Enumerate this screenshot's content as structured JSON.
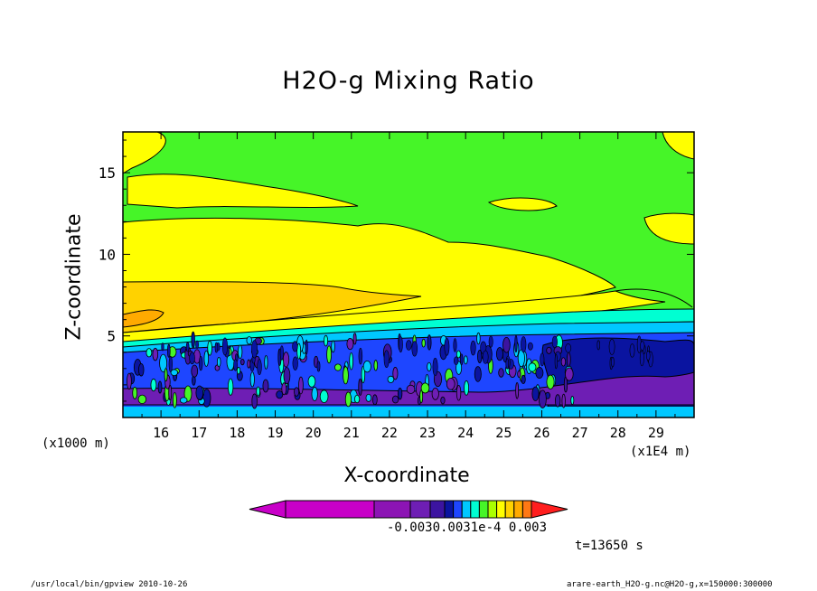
{
  "chart_data": {
    "type": "heatmap",
    "title": "H2O-g Mixing Ratio",
    "xlabel": "X-coordinate",
    "ylabel": "Z-coordinate",
    "x_scale_note": "(x1E4 m)",
    "y_scale_note": "(x1000 m)",
    "x_ticks": [
      16,
      17,
      18,
      19,
      20,
      21,
      22,
      23,
      24,
      25,
      26,
      27,
      28,
      29
    ],
    "y_ticks": [
      5,
      10,
      15
    ],
    "xlim": [
      15.0,
      30.0
    ],
    "ylim": [
      0,
      17.5
    ],
    "colorbar": {
      "colors": [
        "#c800c8",
        "#c800c8",
        "#8c14b4",
        "#6e1eb4",
        "#3c14a0",
        "#0a14a0",
        "#1e46ff",
        "#00c8ff",
        "#00ffd2",
        "#46f528",
        "#aaff00",
        "#ffff00",
        "#ffd200",
        "#ffaa00",
        "#ff7814",
        "#ff1e1e"
      ],
      "tick_labels_text": "-0.0030.0031e-4 0.003",
      "extend": "both"
    },
    "bands": [
      {
        "z_low": 0.3,
        "z_high": 0.8,
        "color": "#00c8ff"
      },
      {
        "z_low": 0.8,
        "z_high": 1.3,
        "color": "#6e1eb4"
      },
      {
        "z_low": 1.3,
        "z_high": 3.8,
        "color": "#1e46ff"
      },
      {
        "z_low": 3.8,
        "z_high": 4.6,
        "color": "#1e46ff"
      },
      {
        "z_low": 4.6,
        "z_high": 5.2,
        "color": "#00ffd2"
      },
      {
        "z_low": 5.2,
        "z_high": 6.5,
        "color": "#ffff00"
      },
      {
        "z_low": 6.5,
        "z_high": 8.5,
        "color": "#ffd200"
      },
      {
        "z_low": 8.5,
        "z_high": 12.5,
        "color": "#ffff00"
      },
      {
        "z_low": 12.5,
        "z_high": 17.5,
        "color": "#46f528"
      }
    ],
    "time_label": "t=13650 s"
  },
  "footer": {
    "left": "/usr/local/bin/gpview  2010-10-26",
    "right": "arare-earth_H2O-g.nc@H2O-g,x=150000:300000"
  },
  "colors": {
    "background": "#ffffff",
    "green": "#46f528",
    "yellow": "#ffff00",
    "orange": "#ffd200",
    "deep_orange": "#ffaa00",
    "cyan": "#00ffd2",
    "sky": "#00c8ff",
    "blue": "#1e46ff",
    "navy": "#0a14a0",
    "indigo": "#3c14a0",
    "purple": "#6e1eb4"
  }
}
